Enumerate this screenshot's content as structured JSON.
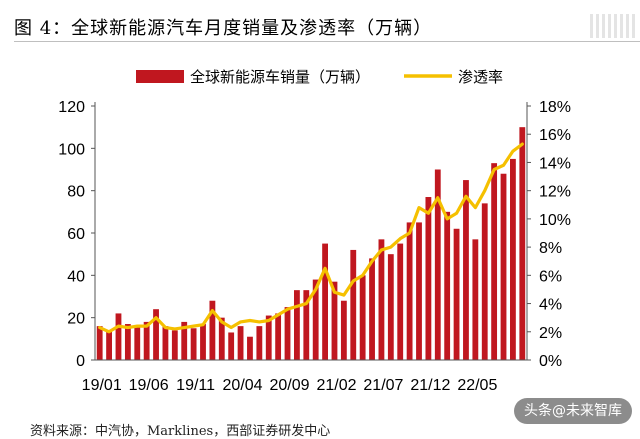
{
  "figure": {
    "title": "图 4：全球新能源汽车月度销量及渗透率（万辆）",
    "source": "资料来源：中汽协，Marklines，西部证券研发中心",
    "watermark": "头条@未来智库"
  },
  "colors": {
    "bar": "#c0171f",
    "line": "#f5c000",
    "axis": "#555555"
  },
  "chart_data": {
    "type": "bar",
    "legend_position": "top",
    "grid": false,
    "x_labels": [
      "19/01",
      "19/06",
      "19/11",
      "20/04",
      "20/09",
      "21/02",
      "21/07",
      "21/12",
      "22/05"
    ],
    "x_label_every": 5,
    "y_left": {
      "min": 0,
      "max": 120,
      "ticks": [
        "0",
        "20",
        "40",
        "60",
        "80",
        "100",
        "120"
      ]
    },
    "y_right": {
      "min": 0,
      "max": 18,
      "ticks": [
        "0%",
        "2%",
        "4%",
        "6%",
        "8%",
        "10%",
        "12%",
        "14%",
        "16%",
        "18%"
      ]
    },
    "series": [
      {
        "name": "全球新能源车销量（万辆）",
        "kind": "bar",
        "axis": "left",
        "values": [
          16,
          14,
          22,
          17,
          16,
          18,
          24,
          16,
          14,
          18,
          15,
          17,
          28,
          20,
          13,
          16,
          11,
          16,
          21,
          22,
          25,
          33,
          33,
          38,
          55,
          37,
          28,
          52,
          40,
          48,
          57,
          50,
          55,
          65,
          65,
          77,
          90,
          70,
          62,
          85,
          57,
          74,
          93,
          88,
          95,
          110
        ]
      },
      {
        "name": "渗透率",
        "kind": "line",
        "axis": "right",
        "values": [
          2.3,
          2.0,
          2.4,
          2.3,
          2.4,
          2.4,
          3.0,
          2.3,
          2.2,
          2.3,
          2.4,
          2.5,
          3.5,
          2.7,
          2.3,
          2.7,
          2.8,
          2.7,
          2.8,
          3.2,
          3.6,
          3.8,
          4.0,
          5.0,
          6.5,
          4.8,
          4.6,
          5.6,
          6.0,
          7.0,
          7.8,
          8.0,
          8.6,
          9.0,
          10.8,
          10.4,
          11.5,
          10.0,
          10.4,
          11.6,
          10.8,
          12.0,
          13.5,
          13.8,
          14.8,
          15.3
        ]
      }
    ]
  }
}
